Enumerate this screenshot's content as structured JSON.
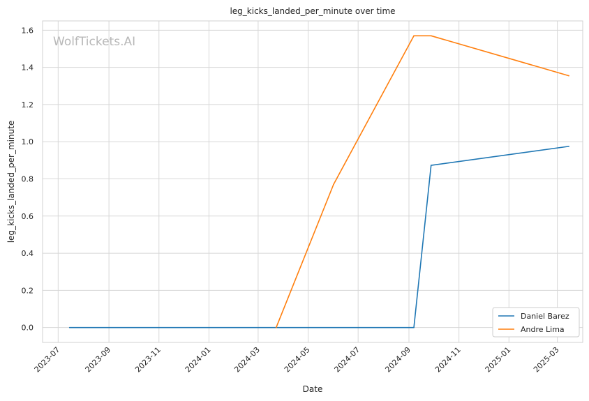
{
  "chart_data": {
    "type": "line",
    "title": "leg_kicks_landed_per_minute over time",
    "xlabel": "Date",
    "ylabel": "leg_kicks_landed_per_minute",
    "watermark": "WolfTickets.AI",
    "xlim": [
      "2023-06-12",
      "2025-04-01"
    ],
    "ylim": [
      -0.08,
      1.65
    ],
    "x_ticks": [
      "2023-07",
      "2023-09",
      "2023-11",
      "2024-01",
      "2024-03",
      "2024-05",
      "2024-07",
      "2024-09",
      "2024-11",
      "2025-01",
      "2025-03"
    ],
    "y_ticks": [
      "0.0",
      "0.2",
      "0.4",
      "0.6",
      "0.8",
      "1.0",
      "1.2",
      "1.4",
      "1.6"
    ],
    "grid": true,
    "legend_position": "bottom-right",
    "series": [
      {
        "name": "Daniel Barez",
        "color": "#1f77b4",
        "points": [
          {
            "x": "2023-07-15",
            "y": 0.0
          },
          {
            "x": "2024-09-07",
            "y": 0.0
          },
          {
            "x": "2024-09-28",
            "y": 0.873
          },
          {
            "x": "2025-03-15",
            "y": 0.975
          }
        ]
      },
      {
        "name": "Andre Lima",
        "color": "#ff7f0e",
        "points": [
          {
            "x": "2024-03-23",
            "y": 0.0
          },
          {
            "x": "2024-06-01",
            "y": 0.77
          },
          {
            "x": "2024-09-07",
            "y": 1.57
          },
          {
            "x": "2024-09-28",
            "y": 1.57
          },
          {
            "x": "2025-03-15",
            "y": 1.355
          }
        ]
      }
    ]
  }
}
